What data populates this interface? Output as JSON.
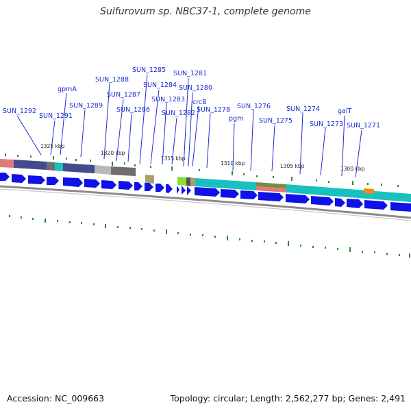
{
  "title": "Sulfurovum sp. NBC37-1, complete genome",
  "footer": {
    "accession": "Accession: NC_009663",
    "summary": "Topology: circular; Length: 2,562,277 bp; Genes: 2,491"
  },
  "colors": {
    "label": "#1a2ad0",
    "arrow": "#1010e8",
    "tick": "#2a8a2a",
    "backbone": "#8a8a8a"
  },
  "kbp_markers": [
    "1325 kbp",
    "1320 kbp",
    "1315 kbp",
    "1310 kbp",
    "1305 kbp",
    "1300 kbp"
  ],
  "gene_labels": [
    "SUN_1292",
    "SUN_1291",
    "gpmA",
    "SUN_1289",
    "SUN_1288",
    "SUN_1287",
    "SUN_1286",
    "SUN_1285",
    "SUN_1284",
    "SUN_1283",
    "SUN_1282",
    "SUN_1281",
    "SUN_1280",
    "crcB",
    "SUN_1278",
    "pgm",
    "SUN_1276",
    "SUN_1275",
    "SUN_1274",
    "SUN_1273",
    "galT",
    "SUN_1271"
  ]
}
